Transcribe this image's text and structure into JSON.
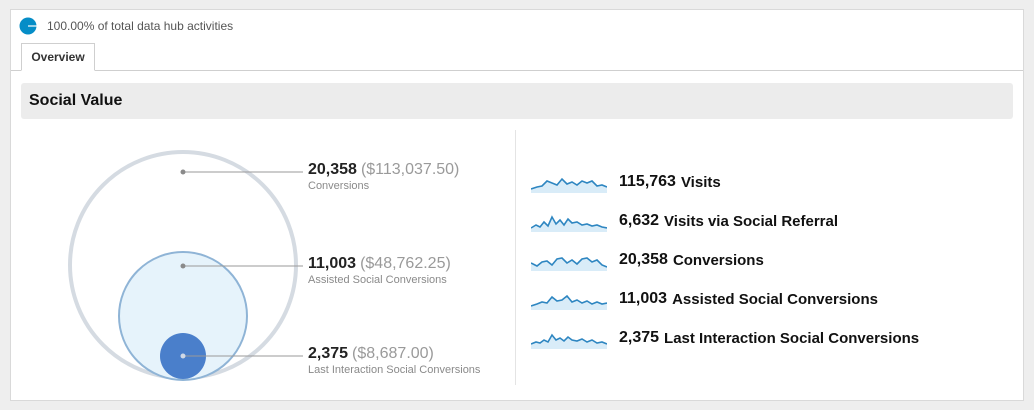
{
  "header": {
    "summary_text": "100.00% of total data hub activities",
    "pie_color": "#058dc7"
  },
  "tabs": [
    {
      "label": "Overview"
    }
  ],
  "section": {
    "title": "Social Value"
  },
  "callouts": [
    {
      "count": "20,358",
      "value": "($113,037.50)",
      "label": "Conversions"
    },
    {
      "count": "11,003",
      "value": "($48,762.25)",
      "label": "Assisted Social Conversions"
    },
    {
      "count": "2,375",
      "value": "($8,687.00)",
      "label": "Last Interaction Social Conversions"
    }
  ],
  "metrics": [
    {
      "count": "115,763",
      "label": "Visits",
      "icon": "sparkline-icon"
    },
    {
      "count": "6,632",
      "label": "Visits via Social Referral",
      "icon": "sparkline-icon"
    },
    {
      "count": "20,358",
      "label": "Conversions",
      "icon": "sparkline-icon"
    },
    {
      "count": "11,003",
      "label": "Assisted Social Conversions",
      "icon": "sparkline-icon"
    },
    {
      "count": "2,375",
      "label": "Last Interaction Social Conversions",
      "icon": "sparkline-icon"
    }
  ],
  "colors": {
    "accent": "#058dc7",
    "outer_ring": "#d5dbe2",
    "mid_fill": "#e6f3fb",
    "mid_ring": "#8fb4d6",
    "inner_fill": "#4a7fcb",
    "spark_line": "#2e86c1",
    "spark_fill": "#d9ecf8"
  }
}
